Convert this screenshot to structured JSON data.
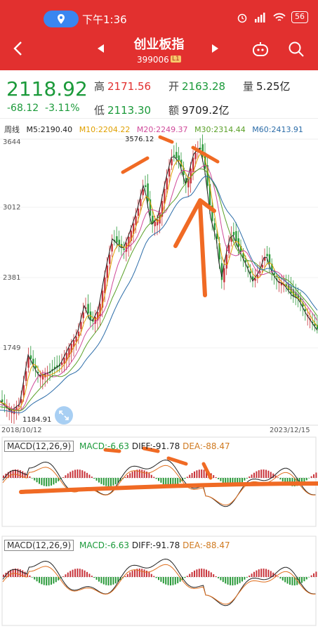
{
  "status": {
    "time": "下午1:36",
    "battery": "56"
  },
  "nav": {
    "title": "创业板指",
    "code": "399006",
    "badge": "L1"
  },
  "quote": {
    "price": "2118.92",
    "change": "-68.12",
    "change_pct": "-3.11%",
    "high_label": "高",
    "high": "2171.56",
    "open_label": "开",
    "open": "2163.28",
    "volume_label": "量",
    "volume": "5.25亿",
    "low_label": "低",
    "low": "2113.30",
    "amount_label": "额",
    "amount": "9709.2亿"
  },
  "ma_legend": {
    "period": "周线",
    "ma5": "M5:2190.40",
    "ma10": "M10:2204.22",
    "ma20": "M20:2249.37",
    "ma30": "M30:2314.44",
    "ma60": "M60:2413.91"
  },
  "colors": {
    "ma5": "#222222",
    "ma10": "#e0a000",
    "ma20": "#d04a9a",
    "ma30": "#5aa028",
    "ma60": "#2b6ca8",
    "up": "#c8333a",
    "down": "#2a9a3a"
  },
  "axis": {
    "y_labels": [
      "3644",
      "3012",
      "2381",
      "1749"
    ],
    "peak_label": "3576.12",
    "low_label": "1184.91",
    "start_date": "2018/10/12",
    "end_date": "2023/12/15"
  },
  "macd1": {
    "name": "MACD(12,26,9)",
    "macd": "MACD:-6.63",
    "diff": "DIFF:-91.78",
    "dea": "DEA:-88.47"
  },
  "macd2": {
    "name": "MACD(12,26,9)",
    "macd": "MACD:-6.63",
    "diff": "DIFF:-91.78",
    "dea": "DEA:-88.47"
  }
}
